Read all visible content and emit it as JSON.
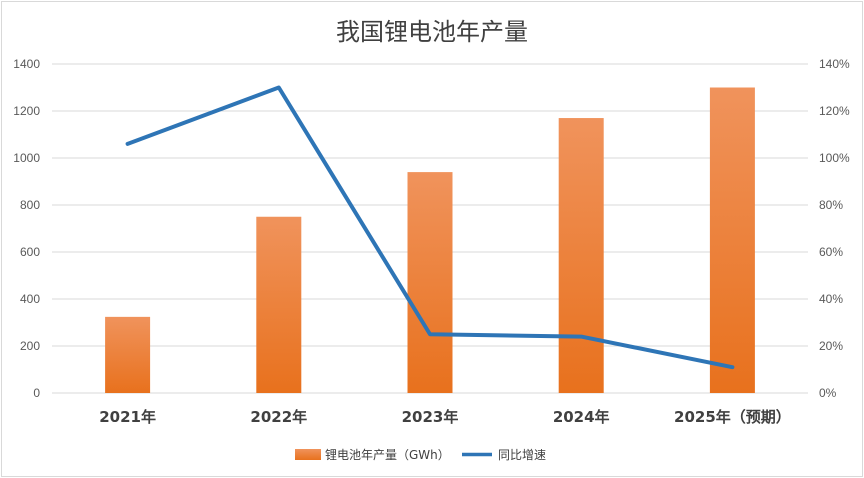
{
  "chart_data": {
    "type": "bar",
    "title": "我国锂电池年产量",
    "categories": [
      "2021年",
      "2022年",
      "2023年",
      "2024年",
      "2025年（预期）"
    ],
    "series": [
      {
        "name": "锂电池年产量（GWh）",
        "type": "bar",
        "axis": "left",
        "color": "#ed7d31",
        "values": [
          324,
          750,
          940,
          1170,
          1300
        ]
      },
      {
        "name": "同比增速",
        "type": "line",
        "axis": "right",
        "color": "#2e75b6",
        "values": [
          106,
          130,
          25,
          24,
          11
        ]
      }
    ],
    "y_left": {
      "min": 0,
      "max": 1400,
      "step": 200,
      "ticks": [
        "0",
        "200",
        "400",
        "600",
        "800",
        "1000",
        "1200",
        "1400"
      ]
    },
    "y_right": {
      "min": 0,
      "max": 140,
      "step": 20,
      "ticks": [
        "0%",
        "20%",
        "40%",
        "60%",
        "80%",
        "100%",
        "120%",
        "140%"
      ]
    },
    "grid": true,
    "legend_position": "bottom"
  }
}
